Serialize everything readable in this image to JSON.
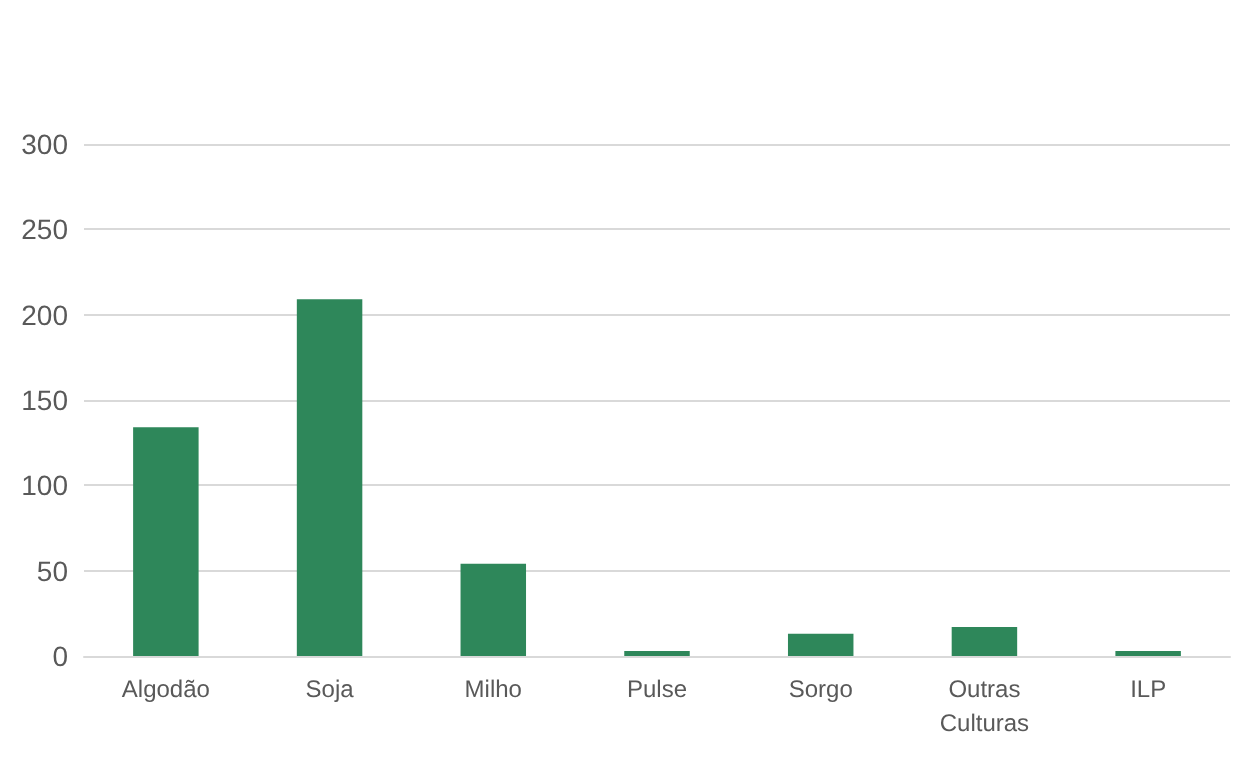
{
  "chart_data": {
    "type": "bar",
    "categories": [
      "Algodão",
      "Soja",
      "Milho",
      "Pulse",
      "Sorgo",
      "Outras\nCulturas",
      "ILP"
    ],
    "values": [
      134,
      209,
      54,
      3,
      13,
      17,
      3
    ],
    "color": "#2e875a",
    "ylim": [
      0,
      300
    ],
    "yticks": [
      0,
      50,
      100,
      150,
      200,
      250,
      300
    ],
    "grid": "y"
  }
}
